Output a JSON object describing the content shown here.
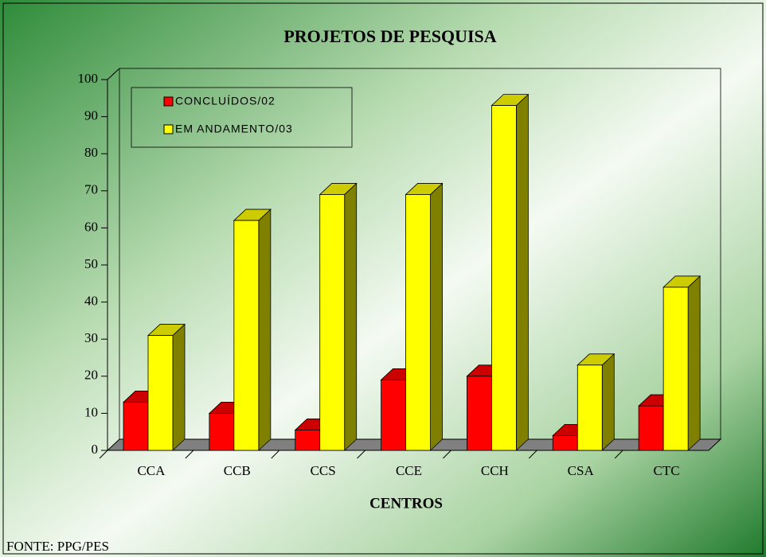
{
  "chart_data": {
    "type": "bar3d",
    "title": "PROJETOS DE PESQUISA",
    "x_label": "CENTROS",
    "source": "FONTE: PPG/PES",
    "categories": [
      "CCA",
      "CCB",
      "CCS",
      "CCE",
      "CCH",
      "CSA",
      "CTC"
    ],
    "series": [
      {
        "name": "CONCLUÍDOS/02",
        "color": "#ff0000",
        "values": [
          13,
          10,
          5.5,
          19,
          20,
          4,
          12
        ]
      },
      {
        "name": "EM ANDAMENTO/03",
        "color": "#ffff00",
        "values": [
          31,
          62,
          69,
          69,
          93,
          23,
          44
        ]
      }
    ],
    "ylim": [
      0,
      100
    ],
    "yticks": [
      0,
      10,
      20,
      30,
      40,
      50,
      60,
      70,
      80,
      90,
      100
    ],
    "legend": "top-left"
  }
}
